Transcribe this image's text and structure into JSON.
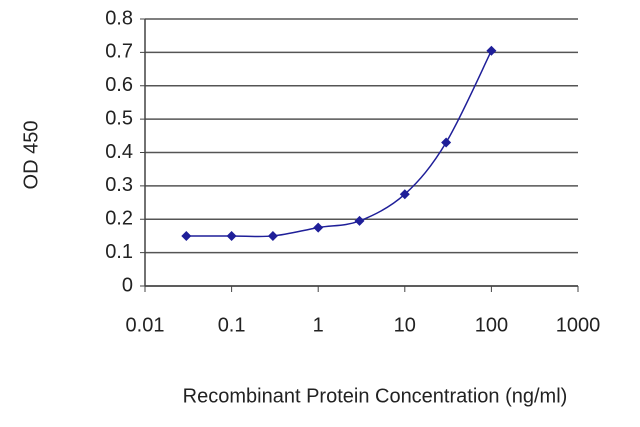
{
  "chart_data": {
    "type": "line",
    "y_label": "OD 450",
    "x_label": "Recombinant Protein Concentration (ng/ml)",
    "x": [
      0.03,
      0.1,
      0.3,
      1,
      3,
      10,
      30,
      100
    ],
    "series": [
      {
        "name": null,
        "color": "#1f1f99",
        "values": [
          0.15,
          0.15,
          0.15,
          0.175,
          0.195,
          0.275,
          0.43,
          0.705
        ]
      }
    ],
    "xscale": "log",
    "xlim": [
      0.01,
      1000
    ],
    "xticks": [
      0.01,
      0.1,
      1,
      10,
      100,
      1000
    ],
    "ylim": [
      0,
      0.8
    ],
    "yticks": [
      0,
      0.1,
      0.2,
      0.3,
      0.4,
      0.5,
      0.6,
      0.7,
      0.8
    ],
    "grid": true
  }
}
